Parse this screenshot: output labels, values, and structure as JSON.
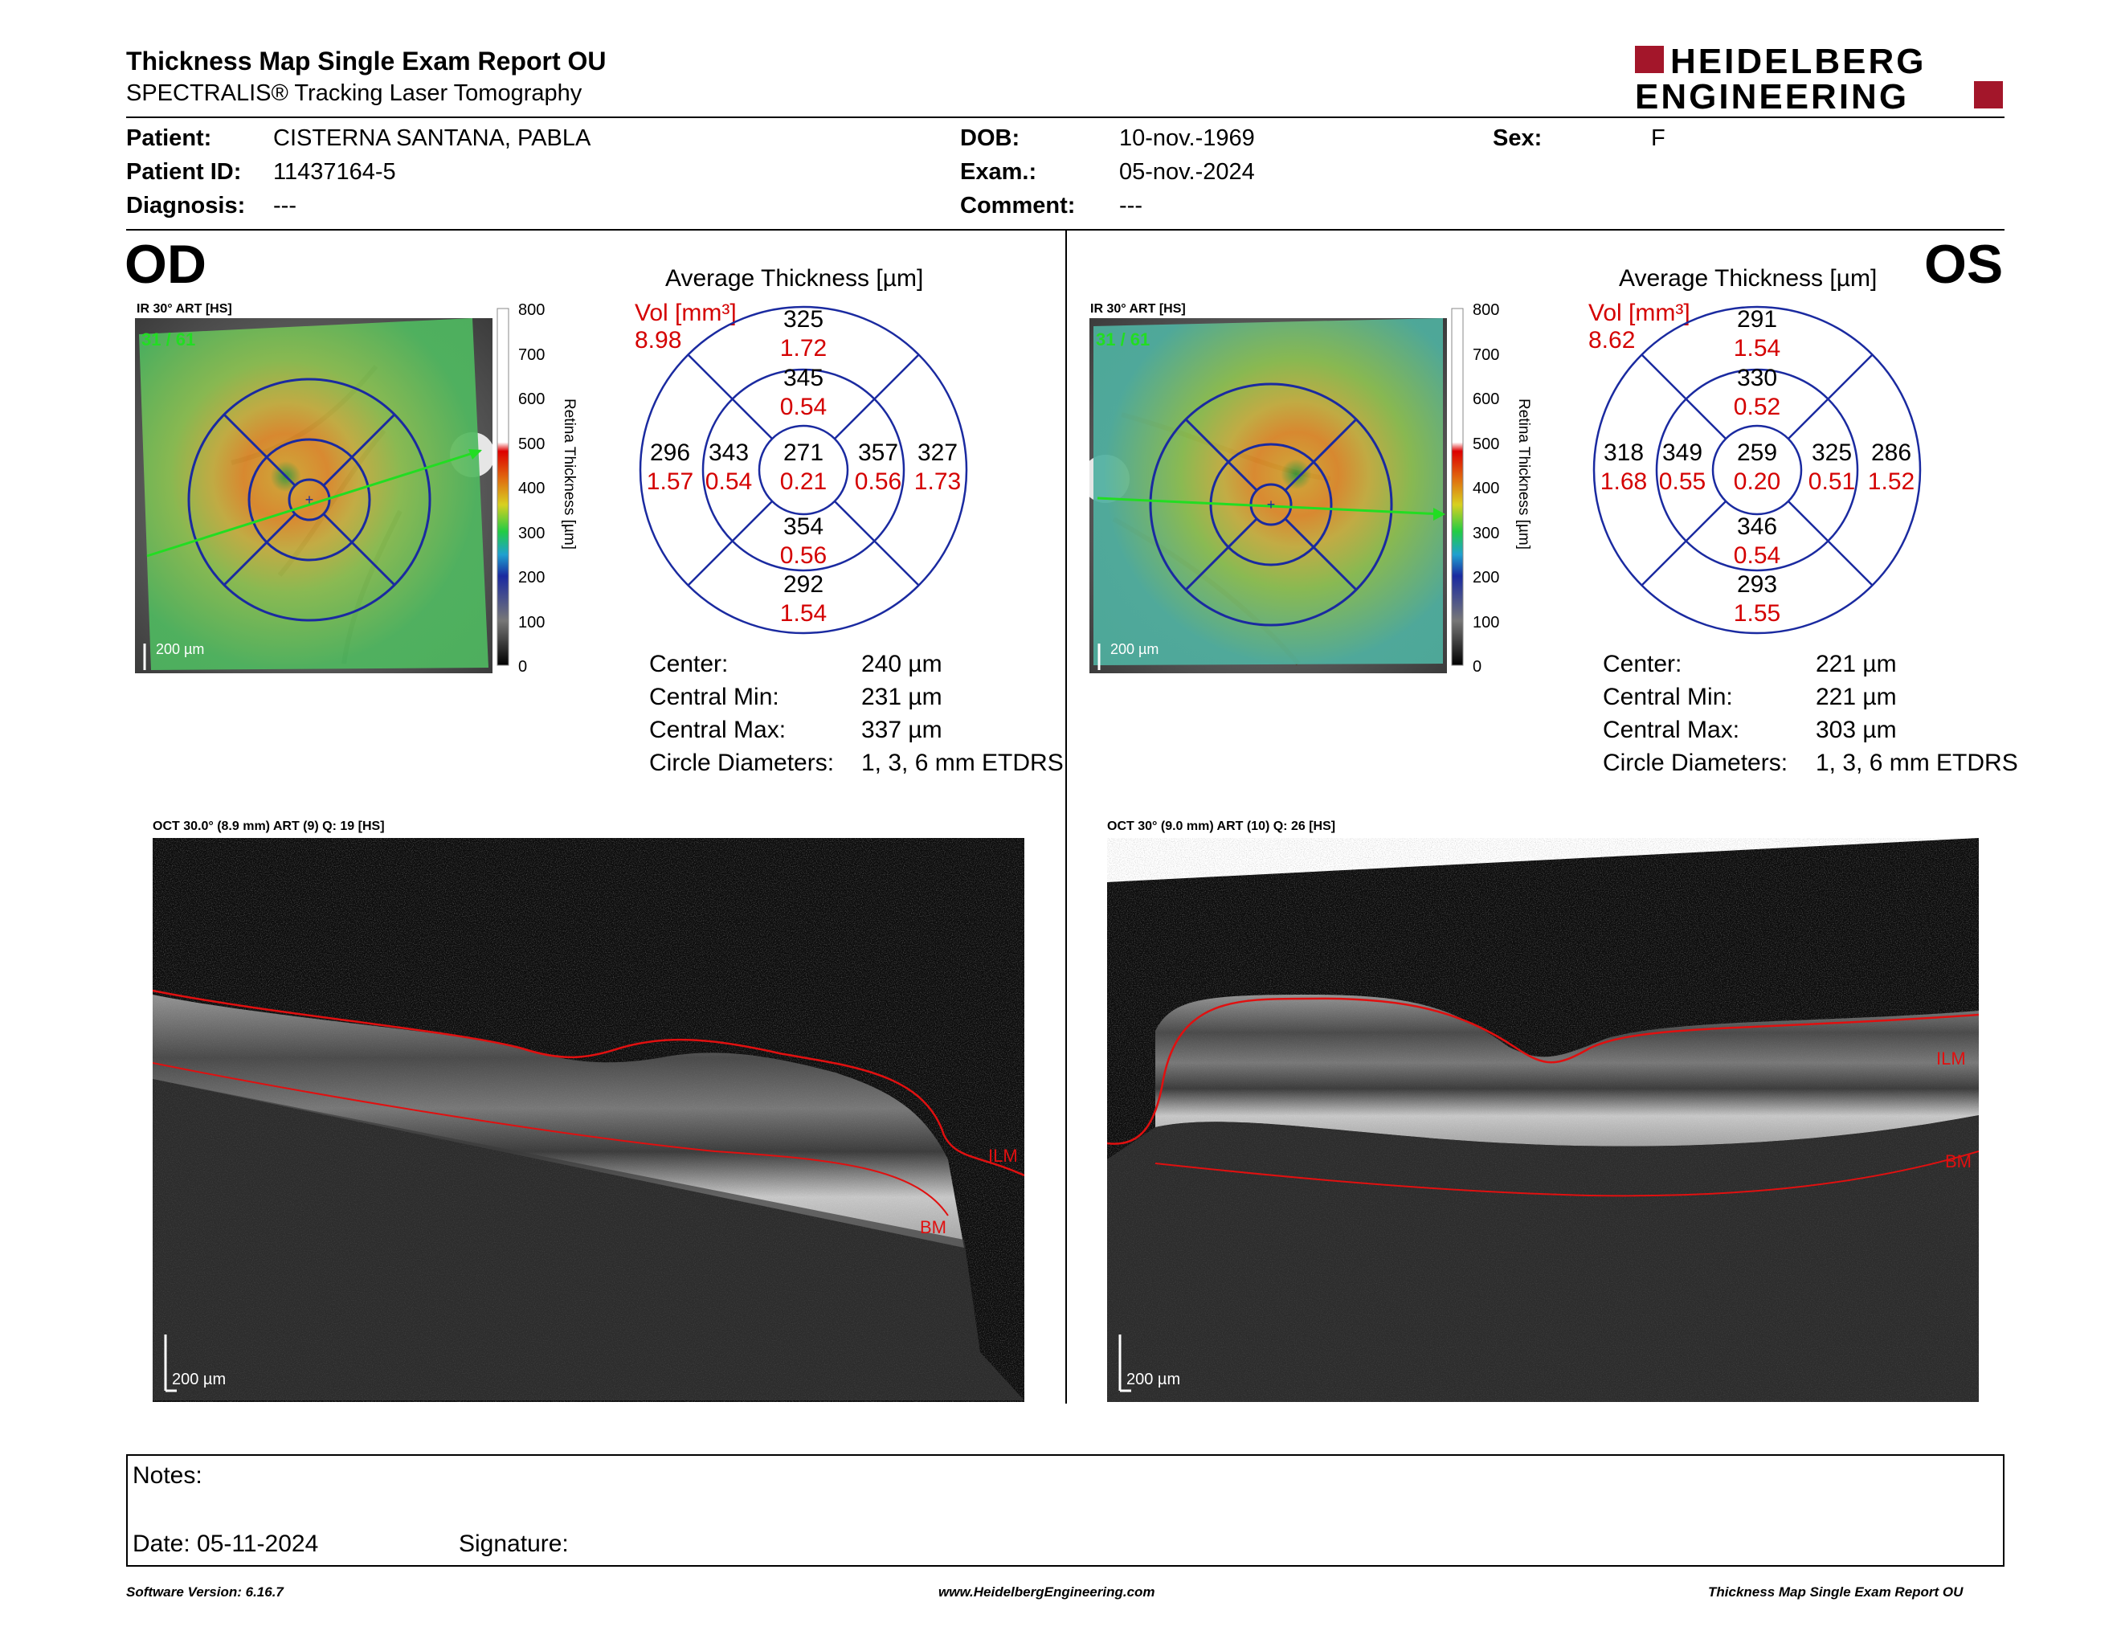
{
  "header": {
    "title": "Thickness Map Single Exam Report OU",
    "subtitle": "SPECTRALIS® Tracking Laser Tomography",
    "logo_line1": "HEIDELBERG",
    "logo_line2": "ENGINEERING",
    "logo_color": "#a3162a"
  },
  "patient": {
    "patient_label": "Patient:",
    "patient_value": "CISTERNA SANTANA, PABLA",
    "id_label": "Patient ID:",
    "id_value": "11437164-5",
    "diagnosis_label": "Diagnosis:",
    "diagnosis_value": "---",
    "dob_label": "DOB:",
    "dob_value": "10-nov.-1969",
    "exam_label": "Exam.:",
    "exam_value": "05-nov.-2024",
    "comment_label": "Comment:",
    "comment_value": "---",
    "sex_label": "Sex:",
    "sex_value": "F"
  },
  "od": {
    "eye_label": "OD",
    "ir_label": "IR 30° ART [HS]",
    "frame_label": "31 / 61",
    "scale_label": "200 µm",
    "colorbar_ticks": [
      "800",
      "700",
      "600",
      "500",
      "400",
      "300",
      "200",
      "100",
      "0"
    ],
    "colorbar_title": "Retina Thickness [µm]",
    "etdrs_title": "Average Thickness [µm]",
    "vol_label": "Vol [mm³]",
    "vol_total": "8.98",
    "sectors": {
      "outer_top": "325",
      "outer_top_vol": "1.72",
      "inner_top": "345",
      "inner_top_vol": "0.54",
      "outer_left": "296",
      "outer_left_vol": "1.57",
      "inner_left": "343",
      "inner_left_vol": "0.54",
      "center": "271",
      "center_vol": "0.21",
      "inner_right": "357",
      "inner_right_vol": "0.56",
      "outer_right": "327",
      "outer_right_vol": "1.73",
      "inner_bottom": "354",
      "inner_bottom_vol": "0.56",
      "outer_bottom": "292",
      "outer_bottom_vol": "1.54"
    },
    "stats": {
      "center_label": "Center:",
      "center_value": "240 µm",
      "min_label": "Central Min:",
      "min_value": "231 µm",
      "max_label": "Central Max:",
      "max_value": "337 µm",
      "circles_label": "Circle Diameters:",
      "circles_value": "1, 3, 6 mm ETDRS"
    },
    "oct_label": "OCT 30.0° (8.9 mm) ART (9) Q: 19 [HS]",
    "oct_scale": "200 µm",
    "ilm": "ILM",
    "bm": "BM"
  },
  "os": {
    "eye_label": "OS",
    "ir_label": "IR 30° ART [HS]",
    "frame_label": "31 / 61",
    "scale_label": "200 µm",
    "colorbar_ticks": [
      "800",
      "700",
      "600",
      "500",
      "400",
      "300",
      "200",
      "100",
      "0"
    ],
    "colorbar_title": "Retina Thickness [µm]",
    "etdrs_title": "Average Thickness [µm]",
    "vol_label": "Vol [mm³]",
    "vol_total": "8.62",
    "sectors": {
      "outer_top": "291",
      "outer_top_vol": "1.54",
      "inner_top": "330",
      "inner_top_vol": "0.52",
      "outer_left": "318",
      "outer_left_vol": "1.68",
      "inner_left": "349",
      "inner_left_vol": "0.55",
      "center": "259",
      "center_vol": "0.20",
      "inner_right": "325",
      "inner_right_vol": "0.51",
      "outer_right": "286",
      "outer_right_vol": "1.52",
      "inner_bottom": "346",
      "inner_bottom_vol": "0.54",
      "outer_bottom": "293",
      "outer_bottom_vol": "1.55"
    },
    "stats": {
      "center_label": "Center:",
      "center_value": "221 µm",
      "min_label": "Central Min:",
      "min_value": "221 µm",
      "max_label": "Central Max:",
      "max_value": "303 µm",
      "circles_label": "Circle Diameters:",
      "circles_value": "1, 3, 6 mm ETDRS"
    },
    "oct_label": "OCT 30° (9.0 mm) ART (10) Q: 26 [HS]",
    "oct_scale": "200 µm",
    "ilm": "ILM",
    "bm": "BM"
  },
  "notes": {
    "notes_label": "Notes:",
    "date_label": "Date: 05-11-2024",
    "signature_label": "Signature:"
  },
  "footer": {
    "software": "Software Version: 6.16.7",
    "website": "www.HeidelbergEngineering.com",
    "report": "Thickness Map Single Exam Report OU"
  },
  "colors": {
    "etdrs_circle": "#1a2aa0",
    "volume_text": "#d40000",
    "ilm_line": "#e01010",
    "scan_arrow": "#22dd22"
  }
}
